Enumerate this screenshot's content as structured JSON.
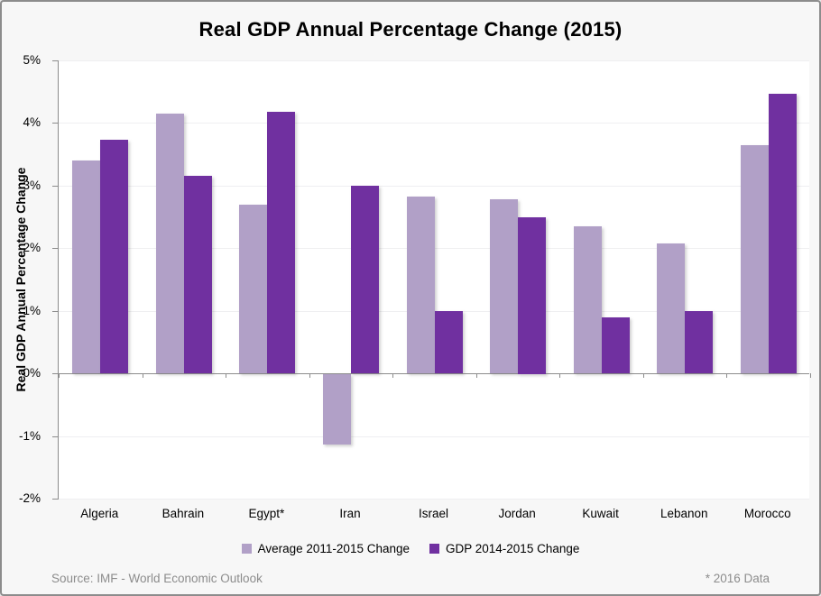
{
  "chart_data": {
    "type": "bar",
    "title": "Real GDP Annual Percentage Change (2015)",
    "ylabel": "Real GDP Annual Percentage Change",
    "xlabel": "",
    "categories": [
      "Algeria",
      "Bahrain",
      "Egypt*",
      "Iran",
      "Israel",
      "Jordan",
      "Kuwait",
      "Lebanon",
      "Morocco"
    ],
    "series": [
      {
        "name": "Average 2011-2015 Change",
        "color": "#B1A0C7",
        "values": [
          3.4,
          4.15,
          2.69,
          -1.13,
          2.82,
          2.78,
          2.35,
          2.07,
          3.64
        ]
      },
      {
        "name": "GDP 2014-2015 Change",
        "color": "#7030A0",
        "values": [
          3.73,
          3.15,
          4.18,
          3.0,
          1.0,
          2.5,
          0.9,
          1.0,
          4.47
        ]
      }
    ],
    "ylim": [
      -2,
      5
    ],
    "y_tick_step": 1,
    "y_tick_suffix": "%",
    "grid": true,
    "legend_position": "bottom"
  },
  "footer": {
    "source": "Source: IMF - World Economic Outlook",
    "note": "* 2016 Data"
  },
  "colors": {
    "background": "#f7f7f7",
    "plot_background": "#ffffff",
    "axis": "#8c8c8c",
    "gridline": "#efeff1",
    "series_light": "#B1A0C7",
    "series_dark": "#7030A0",
    "footer_text": "#8c8c8c"
  }
}
